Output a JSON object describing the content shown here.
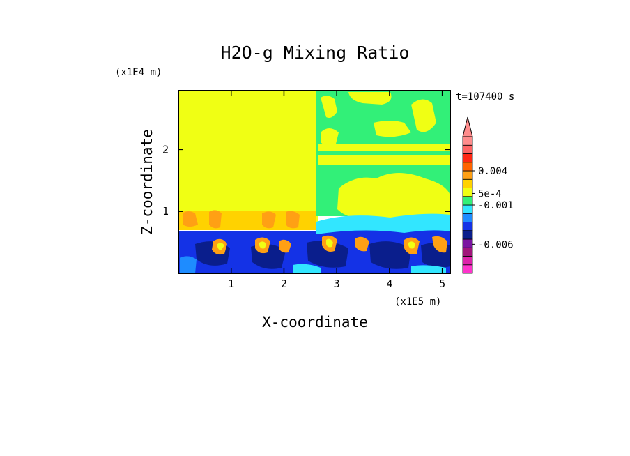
{
  "chart_data": {
    "type": "heatmap",
    "title": "H2O-g Mixing Ratio",
    "xlabel": "X-coordinate",
    "ylabel": "Z-coordinate",
    "x_unit": "(x1E5 m)",
    "y_unit": "(x1E4 m)",
    "time_label": "t=107400 s",
    "xlim": [
      0,
      5.15
    ],
    "ylim": [
      0,
      2.95
    ],
    "xticks": [
      1,
      2,
      3,
      4,
      5
    ],
    "yticks": [
      1,
      2
    ],
    "colorbar": {
      "colors": [
        "#ff33cc",
        "#dd22aa",
        "#a0147a",
        "#7a14a0",
        "#0a1e8c",
        "#1432e6",
        "#1e8cff",
        "#32e6ff",
        "#32f078",
        "#f0ff14",
        "#ffd200",
        "#ffa014",
        "#ff6400",
        "#ff2814",
        "#ff6464",
        "#ff8c8c"
      ],
      "labels": [
        {
          "text": "0.004",
          "level": 12.0
        },
        {
          "text": "5e-4",
          "level": 9.35
        },
        {
          "text": "-0.001",
          "level": 8.0
        },
        {
          "text": "-0.006",
          "level": 3.4
        }
      ],
      "extend_top_color": "#ff8c8c"
    },
    "regions": [
      {
        "name": "upper-left",
        "value_color": "#f0ff14"
      },
      {
        "name": "upper-right",
        "value_color": "#32f078"
      },
      {
        "name": "lower-boundary-layer",
        "value_color": "#1432e6"
      }
    ]
  }
}
